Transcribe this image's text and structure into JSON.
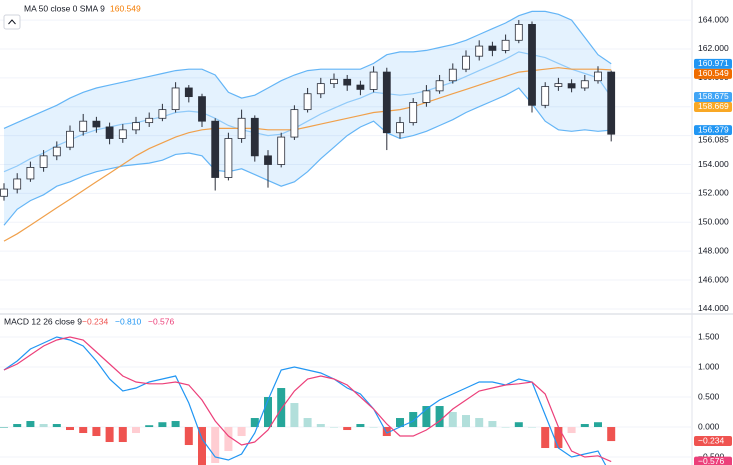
{
  "chart_data": [
    {
      "type": "candlestick",
      "legend_title": "MA 50 close 0 SMA 9",
      "legend_value_color": "#f57c00",
      "ylim": [
        143.65,
        165.39
      ],
      "yticks": [
        {
          "value": 144,
          "label": "144.000"
        },
        {
          "value": 146,
          "label": "146.000"
        },
        {
          "value": 148,
          "label": "148.000"
        },
        {
          "value": 150,
          "label": "150.000"
        },
        {
          "value": 152,
          "label": "152.000"
        },
        {
          "value": 154,
          "label": "154.000"
        },
        {
          "value": 156,
          "label": "156.000"
        },
        {
          "value": 158,
          "label": "158.000"
        },
        {
          "value": 160,
          "label": "160.000"
        },
        {
          "value": 162,
          "label": "162.000"
        },
        {
          "value": 164,
          "label": "164.000"
        }
      ],
      "grid": true,
      "up_color": "#ffffff",
      "down_color": "#2a2e39",
      "candle_border": "#2a2e39",
      "open": [
        151.8,
        152.3,
        153.0,
        153.8,
        154.6,
        155.2,
        156.3,
        157.0,
        156.6,
        155.8,
        156.4,
        156.9,
        157.2,
        157.8,
        159.3,
        158.7,
        157.0,
        153.1,
        155.8,
        157.2,
        154.6,
        154.0,
        155.9,
        157.8,
        158.9,
        159.6,
        159.9,
        159.5,
        159.2,
        160.4,
        156.2,
        156.9,
        158.3,
        159.1,
        159.8,
        160.6,
        161.5,
        162.2,
        161.9,
        162.6,
        163.7,
        158.1,
        159.4,
        159.6,
        159.3,
        159.8,
        160.4
      ],
      "high": [
        152.7,
        153.4,
        154.2,
        155.0,
        155.6,
        156.7,
        157.5,
        157.3,
        156.9,
        156.8,
        157.3,
        157.6,
        158.2,
        159.7,
        159.5,
        158.9,
        157.2,
        156.2,
        157.8,
        157.4,
        155.0,
        156.2,
        158.1,
        159.3,
        160.0,
        160.3,
        160.2,
        159.8,
        160.8,
        160.7,
        157.3,
        158.6,
        159.5,
        160.2,
        161.0,
        161.9,
        162.6,
        162.5,
        163.0,
        164.0,
        163.9,
        159.7,
        160.0,
        159.9,
        160.2,
        160.8,
        160.5
      ],
      "low": [
        151.5,
        152.0,
        152.8,
        153.5,
        154.3,
        155.0,
        156.0,
        156.2,
        155.4,
        155.5,
        156.1,
        156.6,
        157.0,
        157.6,
        158.3,
        156.6,
        152.2,
        152.9,
        155.5,
        154.2,
        152.4,
        153.8,
        155.7,
        157.6,
        158.6,
        159.3,
        159.1,
        158.8,
        159.0,
        155.0,
        155.8,
        156.7,
        158.0,
        158.9,
        159.6,
        160.4,
        161.2,
        161.5,
        161.7,
        162.4,
        157.6,
        157.9,
        159.1,
        159.0,
        159.1,
        159.6,
        155.6
      ],
      "close": [
        152.3,
        153.0,
        153.8,
        154.6,
        155.2,
        156.3,
        157.0,
        156.6,
        155.8,
        156.4,
        156.9,
        157.2,
        157.8,
        159.3,
        158.7,
        157.0,
        153.1,
        155.8,
        157.2,
        154.6,
        154.0,
        155.9,
        157.8,
        158.9,
        159.6,
        159.9,
        159.5,
        159.2,
        160.4,
        156.2,
        156.9,
        158.3,
        159.1,
        159.8,
        160.6,
        161.5,
        162.2,
        161.9,
        162.6,
        163.7,
        158.1,
        159.4,
        159.6,
        159.3,
        159.8,
        160.4,
        156.1
      ],
      "band_fill": "#2196f3",
      "lines": [
        {
          "color": "#64b5f6",
          "values": [
            156.5,
            156.9,
            157.3,
            157.7,
            158.1,
            158.6,
            159.0,
            159.3,
            159.5,
            159.7,
            159.9,
            160.1,
            160.3,
            160.5,
            160.6,
            160.6,
            160.2,
            159.0,
            158.6,
            158.8,
            159.3,
            159.8,
            160.2,
            160.5,
            160.6,
            160.6,
            160.6,
            160.6,
            161.0,
            161.6,
            161.8,
            161.8,
            161.9,
            162.1,
            162.3,
            162.6,
            163.0,
            163.4,
            163.8,
            164.3,
            164.6,
            164.6,
            164.4,
            164.0,
            162.8,
            161.6,
            160.971
          ]
        },
        {
          "color": "#90caf9",
          "values": [
            153.5,
            153.9,
            154.4,
            154.8,
            155.3,
            155.7,
            156.1,
            156.4,
            156.6,
            156.8,
            156.9,
            157.1,
            157.3,
            157.6,
            157.7,
            157.6,
            157.2,
            156.7,
            156.4,
            156.2,
            156.0,
            156.1,
            156.5,
            157.0,
            157.5,
            157.9,
            158.3,
            158.6,
            159.0,
            158.9,
            158.8,
            158.9,
            159.1,
            159.4,
            159.7,
            160.1,
            160.5,
            160.9,
            161.3,
            161.8,
            161.6,
            161.4,
            161.0,
            160.6,
            160.3,
            160.0,
            158.675
          ]
        },
        {
          "color": "#64b5f6",
          "values": [
            149.8,
            150.9,
            151.5,
            151.9,
            152.5,
            152.8,
            153.2,
            153.5,
            153.7,
            153.9,
            154.0,
            154.1,
            154.3,
            154.7,
            154.8,
            154.6,
            153.6,
            153.5,
            153.7,
            153.3,
            152.9,
            152.5,
            152.8,
            153.5,
            154.4,
            155.2,
            156.0,
            156.6,
            157.0,
            156.2,
            155.8,
            156.0,
            156.3,
            156.7,
            157.1,
            157.6,
            158.0,
            158.4,
            158.8,
            159.3,
            158.2,
            157.0,
            156.4,
            156.3,
            156.4,
            156.3,
            156.379
          ]
        },
        {
          "color": "#f0a04b",
          "values": [
            148.7,
            149.2,
            149.8,
            150.4,
            151.0,
            151.6,
            152.2,
            152.8,
            153.4,
            154.0,
            154.6,
            155.1,
            155.5,
            155.9,
            156.2,
            156.4,
            156.5,
            156.5,
            156.5,
            156.5,
            156.4,
            156.4,
            156.4,
            156.6,
            156.8,
            157.0,
            157.2,
            157.4,
            157.6,
            157.7,
            157.8,
            158.0,
            158.3,
            158.6,
            158.9,
            159.2,
            159.5,
            159.8,
            160.1,
            160.4,
            160.5,
            160.6,
            160.7,
            160.6,
            160.6,
            160.6,
            160.549
          ]
        }
      ],
      "badges": [
        {
          "value": 160.971,
          "color": "#2196f3"
        },
        {
          "value": 160.549,
          "color": "#ef6c00"
        },
        {
          "value": 158.675,
          "color": "#42a5f5"
        },
        {
          "value": 158.669,
          "color": "#f9a825"
        },
        {
          "value": 156.379,
          "color": "#2196f3"
        },
        {
          "value": 156.085,
          "color": "#ffffff"
        }
      ]
    },
    {
      "type": "macd",
      "legend_title": "MACD 12 26 close 9",
      "legend_values": [
        {
          "label": "−0.234",
          "color": "#ef5350"
        },
        {
          "label": "−0.810",
          "color": "#2196f3"
        },
        {
          "label": "−0.576",
          "color": "#ec407a"
        }
      ],
      "ylim": [
        -0.633,
        1.867
      ],
      "yticks": [
        {
          "value": -0.5,
          "label": "−0.500"
        },
        {
          "value": 0,
          "label": "0.000"
        },
        {
          "value": 0.5,
          "label": "0.500"
        },
        {
          "value": 1,
          "label": "1.000"
        },
        {
          "value": 1.5,
          "label": "1.500"
        }
      ],
      "grid": true,
      "histogram": [
        0.0,
        0.05,
        0.1,
        0.05,
        0.05,
        -0.05,
        -0.1,
        -0.15,
        -0.25,
        -0.25,
        -0.1,
        0.03,
        0.08,
        0.1,
        -0.3,
        -0.65,
        -0.6,
        -0.4,
        -0.15,
        0.15,
        0.5,
        0.65,
        0.4,
        0.15,
        0.05,
        0.0,
        -0.05,
        0.05,
        0.0,
        -0.15,
        0.15,
        0.25,
        0.35,
        0.35,
        0.25,
        0.2,
        0.15,
        0.1,
        0.0,
        0.08,
        0.0,
        -0.35,
        -0.35,
        -0.1,
        0.05,
        0.08,
        -0.234
      ],
      "hist_colors": {
        "up_strong": "#26a69a",
        "up_light": "#b2dfdb",
        "down_strong": "#ef5350",
        "down_light": "#ffcdd2"
      },
      "lines": [
        {
          "color": "#2196f3",
          "values": [
            0.95,
            1.1,
            1.3,
            1.4,
            1.5,
            1.45,
            1.35,
            1.1,
            0.8,
            0.6,
            0.65,
            0.75,
            0.8,
            0.85,
            0.4,
            -0.2,
            -0.5,
            -0.55,
            -0.45,
            -0.1,
            0.45,
            0.95,
            1.0,
            0.95,
            0.9,
            0.8,
            0.65,
            0.55,
            0.3,
            -0.1,
            0.0,
            0.1,
            0.3,
            0.45,
            0.55,
            0.65,
            0.75,
            0.75,
            0.7,
            0.8,
            0.75,
            0.2,
            -0.35,
            -0.5,
            -0.45,
            -0.4,
            -0.81
          ]
        },
        {
          "color": "#ec407a",
          "values": [
            0.95,
            1.05,
            1.2,
            1.35,
            1.45,
            1.5,
            1.45,
            1.25,
            1.05,
            0.85,
            0.75,
            0.72,
            0.72,
            0.75,
            0.7,
            0.45,
            0.1,
            -0.15,
            -0.3,
            -0.25,
            -0.05,
            0.3,
            0.6,
            0.8,
            0.85,
            0.8,
            0.7,
            0.5,
            0.3,
            0.05,
            -0.15,
            -0.15,
            -0.05,
            0.1,
            0.3,
            0.45,
            0.6,
            0.65,
            0.7,
            0.72,
            0.75,
            0.55,
            0.0,
            -0.4,
            -0.5,
            -0.48,
            -0.576
          ]
        }
      ],
      "badges": [
        {
          "value": -0.234,
          "label": "−0.234",
          "color": "#ef5350"
        },
        {
          "value": -0.576,
          "label": "−0.576",
          "color": "#ec407a"
        }
      ]
    }
  ]
}
